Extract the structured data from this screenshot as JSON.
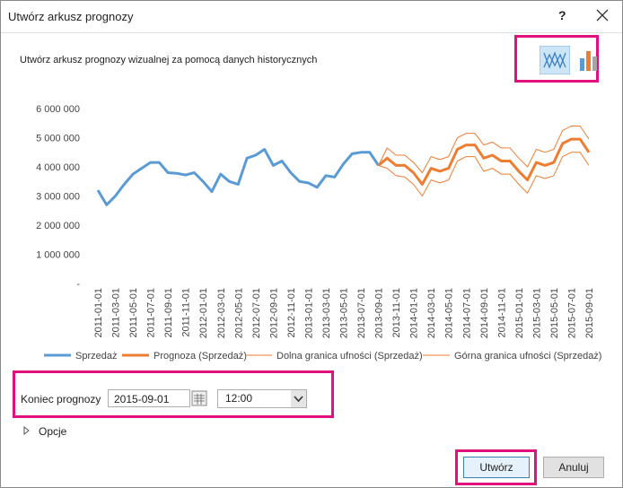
{
  "dialog": {
    "title": "Utwórz arkusz prognozy",
    "help": "?",
    "description": "Utwórz arkusz prognozy wizualnej za pomocą danych historycznych",
    "end_label": "Koniec prognozy",
    "end_date": "2015-09-01",
    "end_time": "12:00",
    "options": "Opcje",
    "create": "Utwórz",
    "cancel": "Anuluj"
  },
  "chart_data": {
    "type": "line",
    "categories": [
      "2011-01-01",
      null,
      "2011-03-01",
      null,
      "2011-05-01",
      null,
      "2011-07-01",
      null,
      "2011-09-01",
      null,
      "2011-11-01",
      null,
      "2012-01-01",
      null,
      "2012-03-01",
      null,
      "2012-05-01",
      null,
      "2012-07-01",
      null,
      "2012-09-01",
      null,
      "2012-11-01",
      null,
      "2013-01-01",
      null,
      "2013-03-01",
      null,
      "2013-05-01",
      null,
      "2013-07-01",
      null,
      "2013-09-01",
      null,
      "2013-11-01",
      null,
      "2014-01-01",
      null,
      "2014-03-01",
      null,
      "2014-05-01",
      null,
      "2014-07-01",
      null,
      "2014-09-01",
      null,
      "2014-11-01",
      null,
      "2015-01-01",
      null,
      "2015-03-01",
      null,
      "2015-05-01",
      null,
      "2015-07-01",
      null,
      "2015-09-01"
    ],
    "series": [
      {
        "name": "Sprzedaż",
        "color": "#5b9bd5",
        "values": [
          3200000,
          2700000,
          3000000,
          3400000,
          3750000,
          3950000,
          4150000,
          4150000,
          3800000,
          3780000,
          3720000,
          3800000,
          3500000,
          3150000,
          3750000,
          3500000,
          3400000,
          4300000,
          4400000,
          4600000,
          4050000,
          4200000,
          3800000,
          3500000,
          3450000,
          3300000,
          3700000,
          3650000,
          4100000,
          4450000,
          4500000,
          4500000,
          4050000,
          null,
          null,
          null,
          null,
          null,
          null,
          null,
          null,
          null,
          null,
          null,
          null,
          null,
          null,
          null,
          null,
          null,
          null,
          null,
          null,
          null,
          null,
          null,
          null
        ]
      },
      {
        "name": "Prognoza (Sprzedaż)",
        "color": "#ed7d31",
        "values": [
          null,
          null,
          null,
          null,
          null,
          null,
          null,
          null,
          null,
          null,
          null,
          null,
          null,
          null,
          null,
          null,
          null,
          null,
          null,
          null,
          null,
          null,
          null,
          null,
          null,
          null,
          null,
          null,
          null,
          null,
          null,
          null,
          4050000,
          4300000,
          4050000,
          4050000,
          3800000,
          3400000,
          3950000,
          3850000,
          3950000,
          4600000,
          4750000,
          4750000,
          4300000,
          4400000,
          4200000,
          4200000,
          3850000,
          3550000,
          4150000,
          4050000,
          4150000,
          4800000,
          4950000,
          4950000,
          4500000
        ]
      },
      {
        "name": "Dolna granica ufności (Sprzedaż)",
        "color": "#ed7d31",
        "values": [
          null,
          null,
          null,
          null,
          null,
          null,
          null,
          null,
          null,
          null,
          null,
          null,
          null,
          null,
          null,
          null,
          null,
          null,
          null,
          null,
          null,
          null,
          null,
          null,
          null,
          null,
          null,
          null,
          null,
          null,
          null,
          null,
          4050000,
          3950000,
          3700000,
          3650000,
          3400000,
          3000000,
          3550000,
          3450000,
          3550000,
          4200000,
          4350000,
          4350000,
          3850000,
          3950000,
          3750000,
          3750000,
          3400000,
          3100000,
          3700000,
          3600000,
          3700000,
          4350000,
          4500000,
          4500000,
          4050000
        ]
      },
      {
        "name": "Górna granica ufności (Sprzedaż)",
        "color": "#ed7d31",
        "values": [
          null,
          null,
          null,
          null,
          null,
          null,
          null,
          null,
          null,
          null,
          null,
          null,
          null,
          null,
          null,
          null,
          null,
          null,
          null,
          null,
          null,
          null,
          null,
          null,
          null,
          null,
          null,
          null,
          null,
          null,
          null,
          null,
          4050000,
          4650000,
          4400000,
          4400000,
          4150000,
          3800000,
          4350000,
          4250000,
          4350000,
          5000000,
          5150000,
          5150000,
          4750000,
          4850000,
          4650000,
          4650000,
          4300000,
          4000000,
          4600000,
          4500000,
          4600000,
          5250000,
          5400000,
          5400000,
          4950000
        ]
      }
    ],
    "ylim": [
      0,
      6000000
    ],
    "yticks": [
      {
        "value": 0,
        "label": "-"
      },
      {
        "value": 1000000,
        "label": "1 000 000"
      },
      {
        "value": 2000000,
        "label": "2 000 000"
      },
      {
        "value": 3000000,
        "label": "3 000 000"
      },
      {
        "value": 4000000,
        "label": "4 000 000"
      },
      {
        "value": 5000000,
        "label": "5 000 000"
      },
      {
        "value": 6000000,
        "label": "6 000 000"
      }
    ],
    "legend": "bottom"
  }
}
